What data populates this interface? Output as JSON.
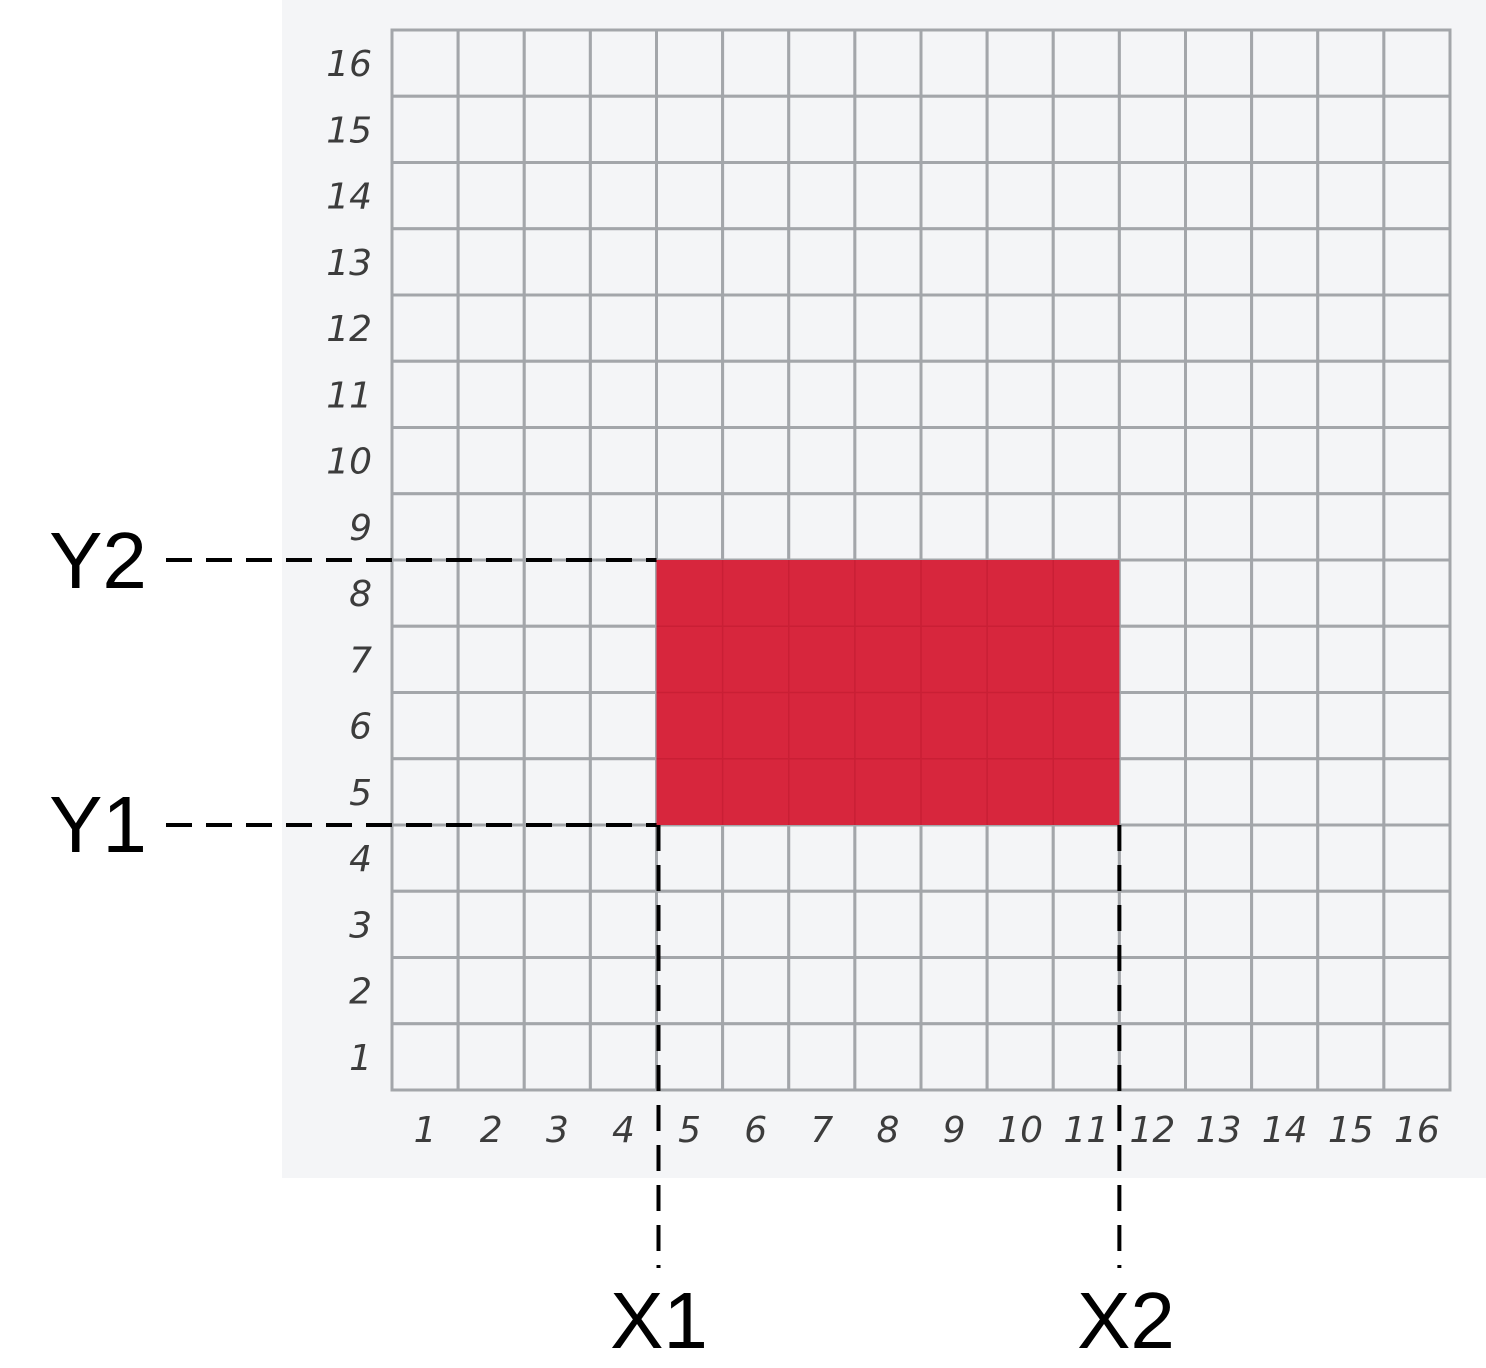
{
  "grid": {
    "columns": 16,
    "rows": 16,
    "x_ticks": [
      "1",
      "2",
      "3",
      "4",
      "5",
      "6",
      "7",
      "8",
      "9",
      "10",
      "11",
      "12",
      "13",
      "14",
      "15",
      "16"
    ],
    "y_ticks": [
      "1",
      "2",
      "3",
      "4",
      "5",
      "6",
      "7",
      "8",
      "9",
      "10",
      "11",
      "12",
      "13",
      "14",
      "15",
      "16"
    ],
    "panel_color": "#f4f5f7",
    "cell_color": "#f4f5f7",
    "line_color": "#a3a6aa"
  },
  "selection": {
    "x_start_cell": 5,
    "x_end_cell": 11,
    "y_start_cell": 5,
    "y_end_cell": 8,
    "color": "#d7263d"
  },
  "markers": {
    "x1": "X1",
    "x2": "X2",
    "y1": "Y1",
    "y2": "Y2",
    "line_color": "#000000"
  }
}
